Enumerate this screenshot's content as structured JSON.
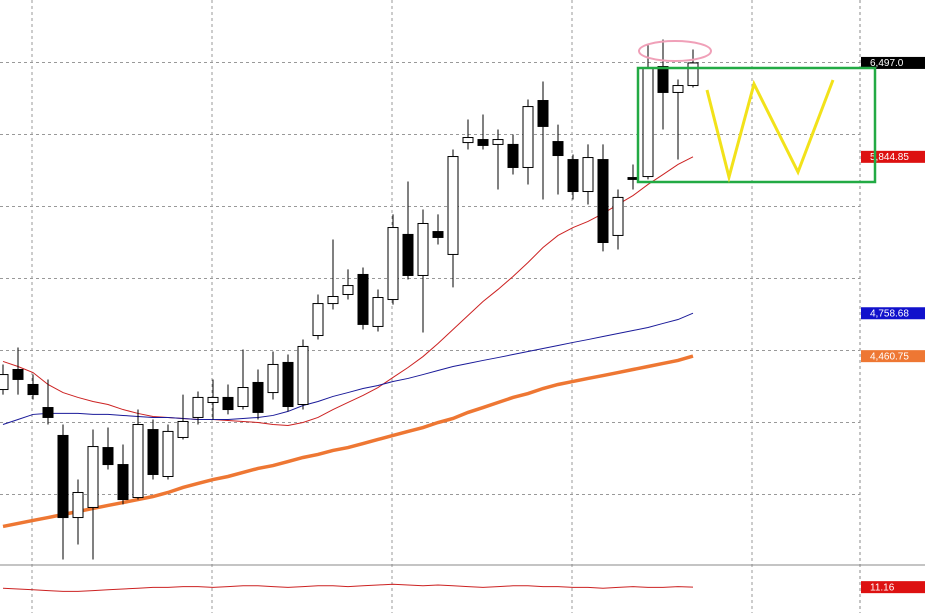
{
  "chart_data": {
    "type": "candlestick",
    "ylim": [
      3000,
      7000
    ],
    "yticks": [
      3500,
      4000,
      4500,
      5000,
      5500,
      6000,
      6500
    ],
    "grid": true,
    "up_color": "#ffffff",
    "down_color": "#000000",
    "candles": {
      "open": [
        4229,
        4368,
        4264,
        4104,
        3910,
        3340,
        3410,
        3826,
        3708,
        3479,
        3951,
        3625,
        3896,
        4035,
        4139,
        4174,
        4111,
        4278,
        4208,
        4417,
        4125,
        4604,
        4826,
        4889,
        5028,
        4667,
        4854,
        5306,
        5021,
        5326,
        5167,
        5944,
        5965,
        5931,
        5931,
        5771,
        6236,
        5951,
        5826,
        5604,
        5826,
        5299,
        5701,
        5708,
        6472,
        6292,
        6340
      ],
      "high": [
        4403,
        4521,
        4333,
        4299,
        3986,
        3604,
        3951,
        3965,
        3847,
        4090,
        4021,
        3986,
        4194,
        4215,
        4299,
        4264,
        4507,
        4368,
        4493,
        4472,
        4576,
        4889,
        5271,
        5063,
        5076,
        4924,
        5445,
        5674,
        5479,
        5445,
        5896,
        6104,
        6139,
        6035,
        6000,
        6243,
        6368,
        6069,
        5861,
        5931,
        5931,
        5618,
        5792,
        6625,
        6660,
        6382,
        6590
      ],
      "low": [
        4194,
        4194,
        4160,
        3986,
        3049,
        3153,
        3049,
        3674,
        3431,
        3465,
        3604,
        3604,
        3882,
        3986,
        4021,
        4056,
        4090,
        4021,
        4160,
        4077,
        4090,
        4576,
        4785,
        4854,
        4646,
        4632,
        4819,
        4993,
        4625,
        5236,
        4938,
        5896,
        5896,
        5618,
        5722,
        5653,
        5549,
        5583,
        5549,
        5514,
        5188,
        5201,
        5618,
        5688,
        6035,
        5826,
        6326
      ],
      "close": [
        4333,
        4299,
        4194,
        4035,
        3340,
        3514,
        3833,
        3708,
        3465,
        3986,
        3639,
        3938,
        4007,
        4174,
        4174,
        4090,
        4243,
        4070,
        4403,
        4111,
        4528,
        4826,
        4875,
        4951,
        4681,
        4868,
        5354,
        5021,
        5382,
        5285,
        5847,
        5979,
        5924,
        5965,
        5771,
        6194,
        6056,
        5854,
        5604,
        5840,
        5250,
        5563,
        5688,
        6465,
        6292,
        6340,
        6497
      ]
    },
    "series": [
      {
        "color": "#cc2222",
        "width": 1,
        "values": [
          4424,
          4389,
          4347,
          4264,
          4208,
          4174,
          4146,
          4125,
          4090,
          4063,
          4042,
          4035,
          4028,
          4021,
          4021,
          4014,
          4007,
          4000,
          3986,
          3979,
          4000,
          4035,
          4090,
          4139,
          4188,
          4243,
          4313,
          4382,
          4458,
          4549,
          4646,
          4743,
          4840,
          4924,
          5014,
          5111,
          5215,
          5299,
          5354,
          5396,
          5451,
          5514,
          5576,
          5653,
          5722,
          5792,
          5845
        ]
      },
      {
        "color": "#1a1a99",
        "width": 1,
        "values": [
          3986,
          4021,
          4056,
          4063,
          4063,
          4063,
          4056,
          4056,
          4049,
          4042,
          4035,
          4035,
          4028,
          4021,
          4021,
          4021,
          4028,
          4035,
          4049,
          4077,
          4118,
          4146,
          4181,
          4208,
          4236,
          4257,
          4285,
          4306,
          4333,
          4361,
          4389,
          4410,
          4431,
          4451,
          4472,
          4493,
          4514,
          4535,
          4556,
          4576,
          4597,
          4618,
          4639,
          4660,
          4688,
          4715,
          4759
        ]
      },
      {
        "color": "#ee7733",
        "width": 3.5,
        "values": [
          3278,
          3299,
          3320,
          3340,
          3361,
          3382,
          3403,
          3424,
          3444,
          3465,
          3486,
          3514,
          3549,
          3577,
          3604,
          3625,
          3653,
          3681,
          3701,
          3729,
          3757,
          3778,
          3806,
          3826,
          3854,
          3882,
          3910,
          3938,
          3965,
          4000,
          4028,
          4070,
          4104,
          4139,
          4174,
          4201,
          4236,
          4264,
          4285,
          4306,
          4326,
          4347,
          4368,
          4389,
          4410,
          4431,
          4461
        ]
      }
    ],
    "price_labels": [
      {
        "value": 6497.0,
        "label": "6,497.0",
        "color": "#000000"
      },
      {
        "value": 5844.85,
        "label": "5,844.85",
        "color": "#dd1111"
      },
      {
        "value": 4758.68,
        "label": "4,758.68",
        "color": "#1111cc"
      },
      {
        "value": 4460.75,
        "label": "4,460.75",
        "color": "#ee7733"
      }
    ],
    "oscillator": {
      "ylim": [
        0,
        25
      ],
      "color": "#cc2222",
      "values": [
        10.5,
        10,
        9.5,
        9,
        8.5,
        8.5,
        9,
        9.5,
        10,
        10.5,
        11,
        11,
        11.5,
        11.5,
        11,
        11.5,
        12,
        12,
        11.5,
        11,
        11.5,
        12,
        12,
        11.5,
        12,
        12.5,
        13,
        12.5,
        12,
        12.5,
        12,
        11.5,
        11,
        11.5,
        12,
        12,
        11.5,
        11.5,
        11,
        11,
        10.5,
        11,
        11.5,
        11,
        11,
        11.5,
        11.16
      ],
      "value_label": {
        "value": 11.16,
        "label": "11.16"
      }
    }
  }
}
